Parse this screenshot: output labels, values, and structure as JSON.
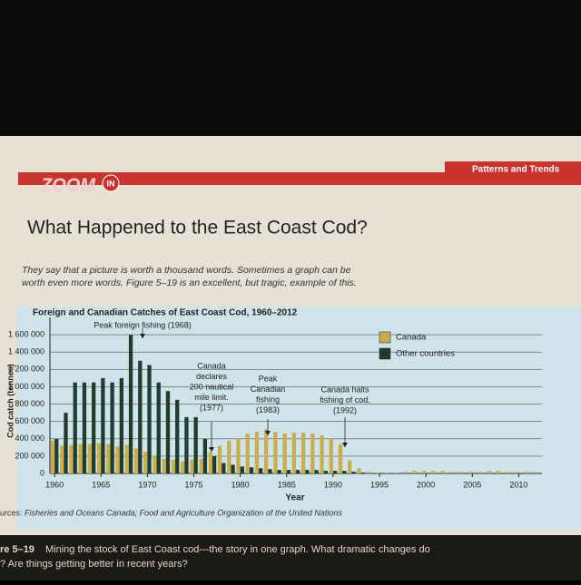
{
  "header": {
    "tag": "Patterns and Trends",
    "logo": "ZOOM",
    "logo_badge": "IN",
    "title": "What Happened to the East Coast Cod?",
    "intro": [
      "They say that a picture is worth a thousand words. Sometimes a graph can be",
      "worth even more words. Figure 5–19 is an excellent, but tragic, example of this."
    ]
  },
  "chart_data": {
    "type": "bar",
    "title": "Foreign and Canadian Catches of East Coast Cod, 1960–2012",
    "y_label": "Cod catch (tonnes)",
    "x_label": "Year",
    "x": [
      1960,
      1961,
      1962,
      1963,
      1964,
      1965,
      1966,
      1967,
      1968,
      1969,
      1970,
      1971,
      1972,
      1973,
      1974,
      1975,
      1976,
      1977,
      1978,
      1979,
      1980,
      1981,
      1982,
      1983,
      1984,
      1985,
      1986,
      1987,
      1988,
      1989,
      1990,
      1991,
      1992,
      1993,
      1994,
      1995,
      1996,
      1997,
      1998,
      1999,
      2000,
      2001,
      2002,
      2003,
      2004,
      2005,
      2006,
      2007,
      2008,
      2009,
      2010,
      2011,
      2012
    ],
    "series": [
      {
        "name": "Canada",
        "color": "#c9ad4f",
        "values": [
          380000,
          320000,
          330000,
          340000,
          340000,
          350000,
          340000,
          310000,
          330000,
          290000,
          250000,
          200000,
          170000,
          160000,
          140000,
          160000,
          170000,
          250000,
          320000,
          380000,
          400000,
          460000,
          480000,
          510000,
          480000,
          460000,
          470000,
          470000,
          460000,
          440000,
          400000,
          340000,
          150000,
          60000,
          20000,
          10000,
          10000,
          10000,
          20000,
          30000,
          30000,
          30000,
          30000,
          20000,
          20000,
          20000,
          20000,
          30000,
          30000,
          20000,
          20000,
          20000,
          20000
        ]
      },
      {
        "name": "Other countries",
        "color": "#1f3d2c",
        "values": [
          400000,
          700000,
          1050000,
          1050000,
          1050000,
          1100000,
          1050000,
          1100000,
          1600000,
          1300000,
          1250000,
          1050000,
          950000,
          850000,
          650000,
          650000,
          400000,
          200000,
          120000,
          100000,
          80000,
          70000,
          60000,
          50000,
          40000,
          40000,
          40000,
          40000,
          40000,
          30000,
          30000,
          30000,
          20000,
          10000,
          5000,
          5000,
          5000,
          5000,
          5000,
          5000,
          5000,
          5000,
          5000,
          5000,
          5000,
          5000,
          5000,
          5000,
          5000,
          5000,
          5000,
          5000,
          5000
        ]
      }
    ],
    "xlim": [
      1959.5,
      2012.5
    ],
    "xticks": [
      1960,
      1965,
      1970,
      1975,
      1980,
      1985,
      1990,
      1995,
      2000,
      2005,
      2010
    ],
    "ylim": [
      0,
      1800000
    ],
    "yticks": [
      0,
      {
        "value": 200000,
        "label": "200 000"
      },
      {
        "value": 400000,
        "label": "400 000"
      },
      {
        "value": 600000,
        "label": "600 000"
      },
      {
        "value": 800000,
        "label": "800 000"
      },
      {
        "value": 1000000,
        "label": "1 000 000"
      },
      {
        "value": 1200000,
        "label": "1 200 000"
      },
      {
        "value": 1400000,
        "label": "1 400 000"
      },
      {
        "value": 1600000,
        "label": "1 600 000"
      }
    ],
    "grid": true,
    "legend": "top-right",
    "annotations": [
      [
        "Peak foreign fishing (1968)"
      ],
      [
        "Canada",
        "declares",
        "200 nautical",
        "mile limit.",
        "(1977)"
      ],
      [
        "Peak",
        "Canadian",
        "fishing",
        "(1983)"
      ],
      [
        "Canada halts",
        "fishing of cod.",
        "(1992)"
      ]
    ],
    "source": "urces: Fisheries and Oceans Canada; Food and Agriculture Organization of the United Nations"
  },
  "caption": {
    "label": "re 5–19",
    "text": "Mining the stock of East Coast cod—the story in one graph. What dramatic changes do",
    "line2": "? Are things getting better in recent years?"
  }
}
